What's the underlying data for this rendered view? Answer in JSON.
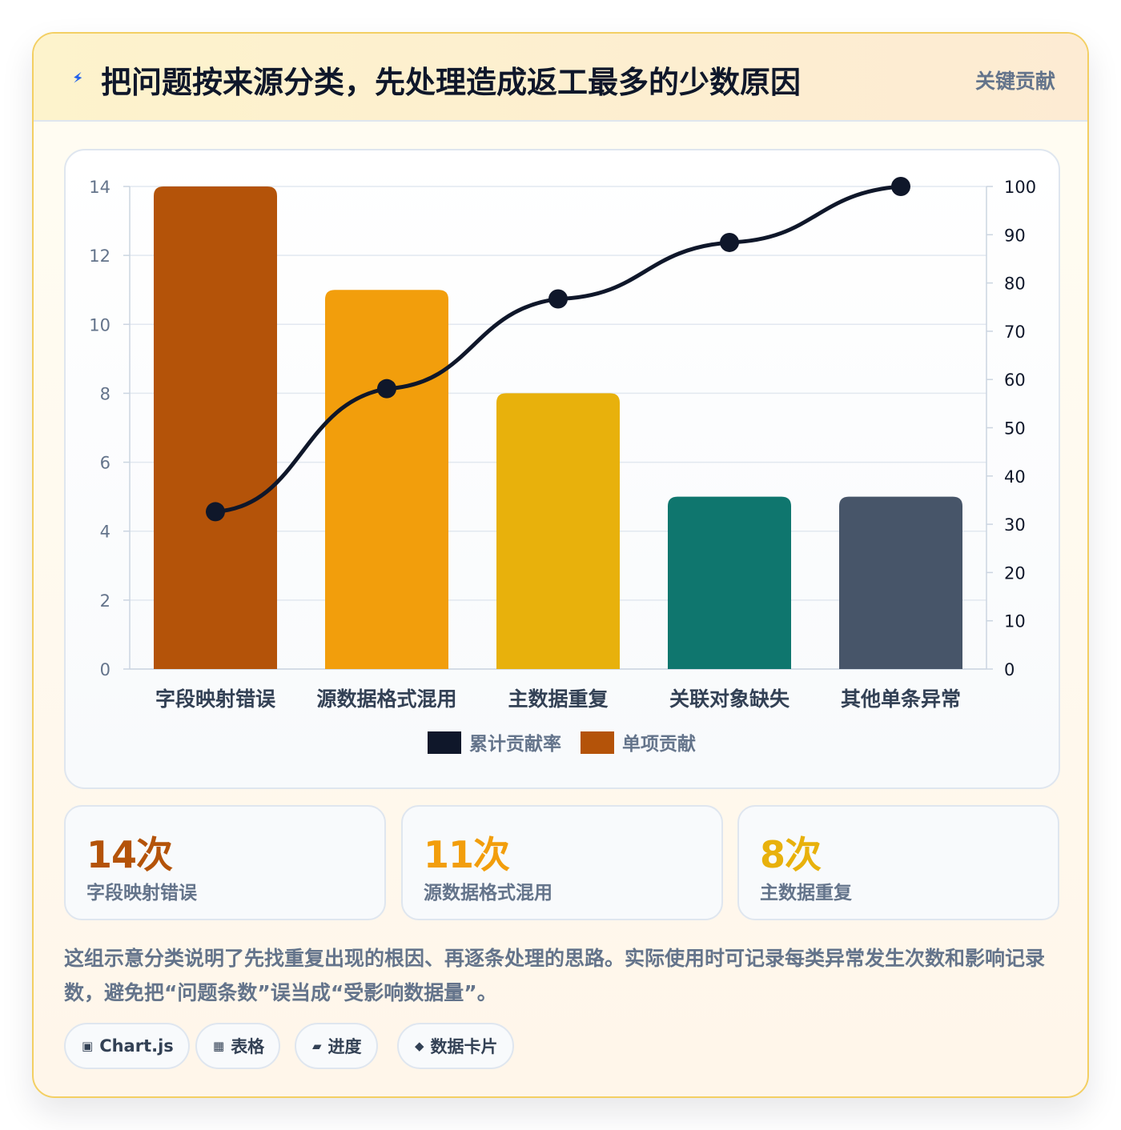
{
  "header": {
    "icon": "lightning-icon",
    "title": "把问题按来源分类，先处理造成返工最多的少数原因",
    "badge": "关键贡献"
  },
  "chart_data": {
    "type": "bar",
    "categories": [
      "字段映射错误",
      "源数据格式混用",
      "主数据重复",
      "关联对象缺失",
      "其他单条异常"
    ],
    "series": [
      {
        "name": "单项贡献",
        "type": "bar",
        "axis": "left",
        "values": [
          14,
          11,
          8,
          5,
          5
        ],
        "colors": [
          "#b45309",
          "#f29e0c",
          "#e8b10c",
          "#0f766e",
          "#475569"
        ]
      },
      {
        "name": "累计贡献率",
        "type": "line",
        "axis": "right",
        "values": [
          32.6,
          58.1,
          76.7,
          88.4,
          100
        ],
        "color": "#0f172a"
      }
    ],
    "y_left": {
      "ylim": [
        0,
        14
      ],
      "ticks": [
        0,
        2,
        4,
        6,
        8,
        10,
        12,
        14
      ]
    },
    "y_right": {
      "ylim": [
        0,
        100
      ],
      "ticks": [
        0,
        10,
        20,
        30,
        40,
        50,
        60,
        70,
        80,
        90,
        100
      ]
    },
    "legend": [
      "累计贡献率",
      "单项贡献"
    ],
    "legend_position": "bottom",
    "grid": true
  },
  "stats": [
    {
      "value": "14次",
      "label": "字段映射错误",
      "color": "#b45309"
    },
    {
      "value": "11次",
      "label": "源数据格式混用",
      "color": "#f29e0c"
    },
    {
      "value": "8次",
      "label": "主数据重复",
      "color": "#e8b10c"
    }
  ],
  "description": "这组示意分类说明了先找重复出现的根因、再逐条处理的思路。实际使用时可记录每类异常发生次数和影响记录数，避免把“问题条数”误当成“受影响数据量”。",
  "tags": [
    {
      "icon": "▣",
      "icon_name": "chart-icon",
      "label": "Chart.js"
    },
    {
      "icon": "▦",
      "icon_name": "table-icon",
      "label": "表格"
    },
    {
      "icon": "▰",
      "icon_name": "progress-icon",
      "label": "进度"
    },
    {
      "icon": "◆",
      "icon_name": "data-card-icon",
      "label": "数据卡片"
    }
  ]
}
